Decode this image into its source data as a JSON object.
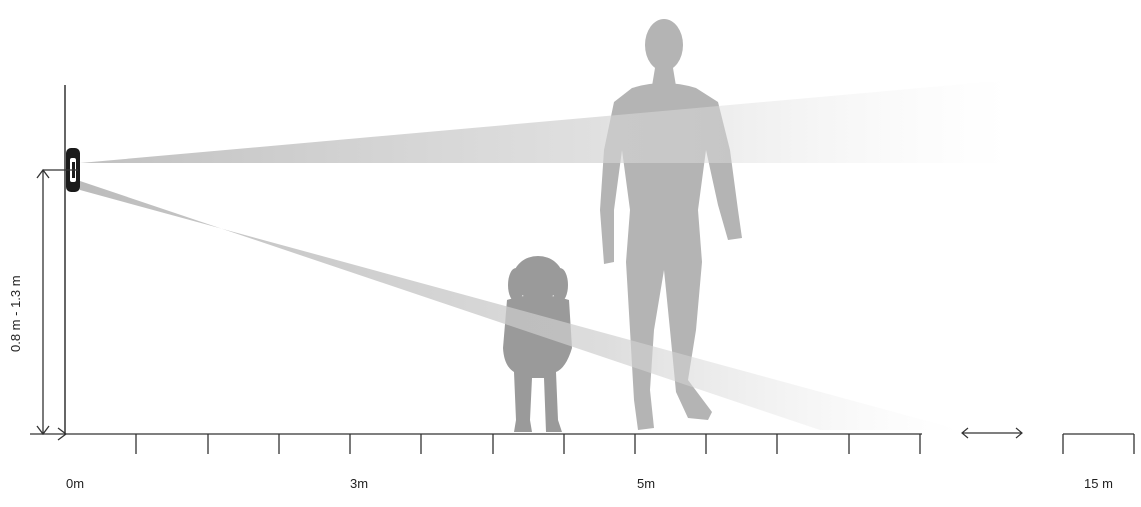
{
  "labels": {
    "mount_height": "0.8 m - 1.3 m",
    "distances": [
      "0m",
      "3m",
      "5m",
      "15 m"
    ]
  },
  "colors": {
    "axis": "#333333",
    "person": "#b4b4b4",
    "dog": "#9a9a9a",
    "beam": "#c8c8c8",
    "detector": "#1a1a1a"
  },
  "icons": {
    "range_gap": "double-arrow-icon",
    "height": "vertical-dimension-arrow-icon"
  }
}
